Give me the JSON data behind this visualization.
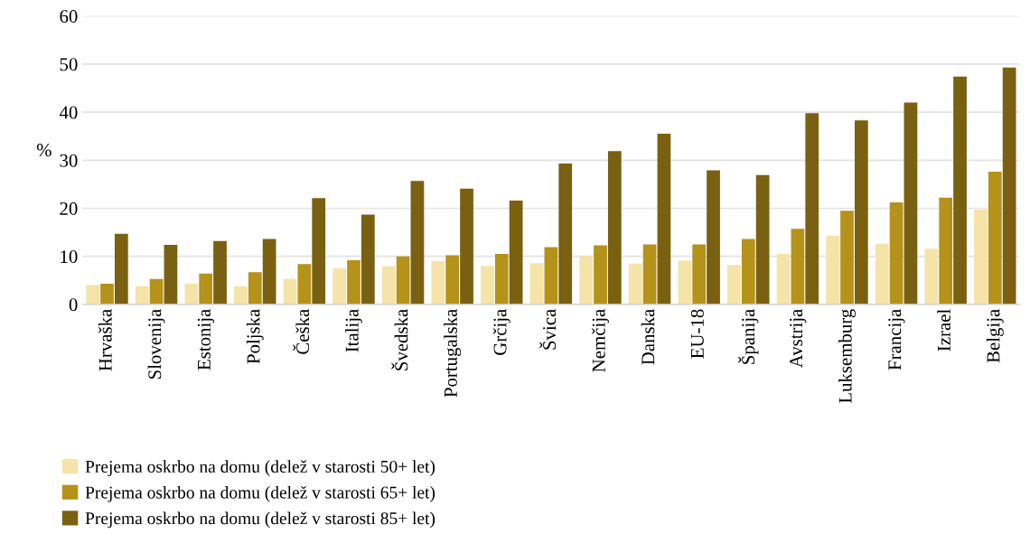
{
  "chart_data": {
    "type": "bar",
    "ylabel": "%",
    "categories": [
      "Hrvaška",
      "Slovenija",
      "Estonija",
      "Poljska",
      "Češka",
      "Italija",
      "Švedska",
      "Portugalska",
      "Grčija",
      "Švica",
      "Nemčija",
      "Danska",
      "EU-18",
      "Španija",
      "Avstrija",
      "Luksemburg",
      "Francija",
      "Izrael",
      "Belgija"
    ],
    "series": [
      {
        "name": "Prejema oskrbo na domu (delež v starosti 50+ let)",
        "color": "#f5e3a8",
        "values": [
          4.0,
          3.8,
          4.3,
          3.8,
          5.3,
          7.5,
          7.9,
          9.0,
          8.0,
          8.6,
          10.1,
          8.5,
          9.1,
          8.2,
          10.5,
          14.3,
          12.6,
          11.6,
          19.7
        ]
      },
      {
        "name": "Prejema oskrbo na domu (delež v starosti 65+ let)",
        "color": "#b59219",
        "values": [
          4.3,
          5.3,
          6.4,
          6.7,
          8.4,
          9.2,
          10.0,
          10.2,
          10.5,
          11.9,
          12.3,
          12.5,
          12.5,
          13.6,
          15.7,
          19.5,
          21.2,
          22.2,
          27.6
        ]
      },
      {
        "name": "Prejema oskrbo na domu (delež v starosti 85+ let)",
        "color": "#7a6011",
        "values": [
          14.7,
          12.4,
          13.2,
          13.6,
          22.1,
          18.7,
          25.7,
          24.1,
          21.6,
          29.3,
          31.9,
          35.5,
          27.9,
          26.9,
          39.8,
          38.3,
          42.0,
          47.4,
          49.3
        ]
      }
    ],
    "ylim": [
      0,
      60
    ],
    "yticks": [
      0,
      10,
      20,
      30,
      40,
      50,
      60
    ],
    "grid": "y",
    "legend": "bottom"
  }
}
